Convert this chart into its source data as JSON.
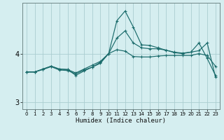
{
  "xlabel": "Humidex (Indice chaleur)",
  "bg_color": "#d5eef0",
  "grid_color": "#aacdd0",
  "line_color": "#1a6b6b",
  "x_values": [
    0,
    1,
    2,
    3,
    4,
    5,
    6,
    7,
    8,
    9,
    10,
    11,
    12,
    13,
    14,
    15,
    16,
    17,
    18,
    19,
    20,
    21,
    22,
    23
  ],
  "line1": [
    3.62,
    3.62,
    3.68,
    3.74,
    3.68,
    3.67,
    3.6,
    3.68,
    3.76,
    3.84,
    4.0,
    4.08,
    4.05,
    3.94,
    3.93,
    3.93,
    3.95,
    3.96,
    3.96,
    3.96,
    3.96,
    4.0,
    3.96,
    3.74
  ],
  "line2": [
    3.62,
    3.62,
    3.68,
    3.74,
    3.68,
    3.67,
    3.55,
    3.64,
    3.72,
    3.82,
    4.0,
    4.32,
    4.47,
    4.22,
    4.12,
    4.1,
    4.1,
    4.07,
    4.02,
    4.0,
    4.03,
    4.22,
    3.9,
    3.55
  ],
  "line3": [
    3.62,
    3.62,
    3.67,
    3.73,
    3.66,
    3.65,
    3.58,
    3.66,
    3.72,
    3.8,
    4.0,
    4.68,
    4.88,
    4.55,
    4.18,
    4.17,
    4.12,
    4.07,
    4.03,
    4.01,
    4.03,
    4.06,
    4.22,
    3.52
  ],
  "ylim": [
    2.85,
    5.05
  ],
  "yticks": [
    3,
    4
  ],
  "xlim": [
    -0.5,
    23.5
  ]
}
